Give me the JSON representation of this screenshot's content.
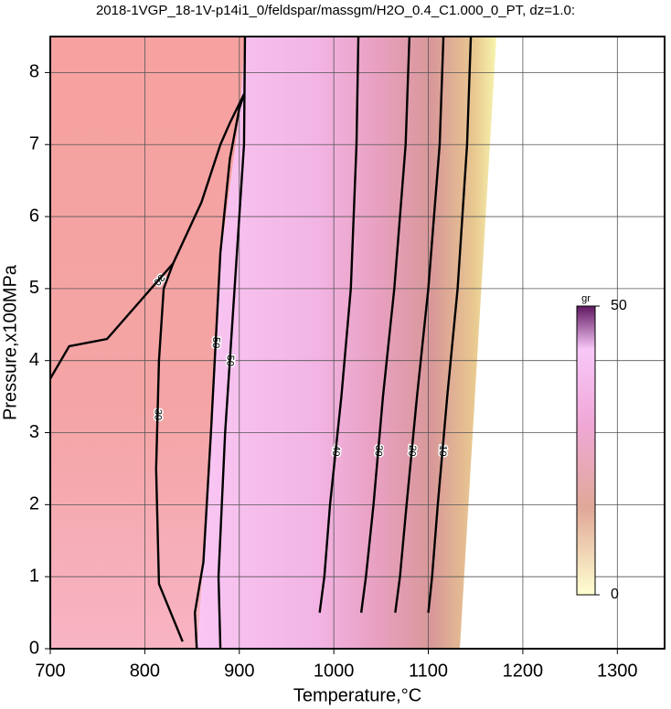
{
  "chart_data": {
    "type": "contour",
    "title": "2018-1VGP_18-1V-p14i1_0/feldspar/massgm/H2O_0.4_C1.000_0_PT, dz=1.0:",
    "x_label": "Temperature,°C",
    "y_label": "Pressure,x100MPa",
    "xlim": [
      700,
      1350
    ],
    "ylim": [
      0,
      8.5
    ],
    "xticks": [
      700,
      800,
      900,
      1000,
      1100,
      1200,
      1300
    ],
    "yticks": [
      0,
      1,
      2,
      3,
      4,
      5,
      6,
      7,
      8
    ],
    "grid": true,
    "colorbar": {
      "label": "gr",
      "lim": [
        0,
        50
      ],
      "ticks": [
        0,
        50
      ]
    },
    "series": [
      {
        "level": 30,
        "x": [
          700,
          720,
          760,
          800,
          830,
          860,
          880,
          890,
          905
        ],
        "y": [
          3.75,
          4.2,
          4.3,
          4.9,
          5.35,
          6.2,
          7.0,
          7.3,
          7.7
        ]
      },
      {
        "level": 30,
        "x": [
          840,
          815,
          812,
          815,
          820,
          830
        ],
        "y": [
          0.1,
          0.9,
          2.5,
          4.0,
          5.0,
          5.35
        ]
      },
      {
        "level": 50,
        "x": [
          855,
          853,
          862,
          870,
          880,
          890,
          900,
          905
        ],
        "y": [
          0,
          0.5,
          1.2,
          3,
          5.5,
          6.8,
          7.5,
          7.7
        ]
      },
      {
        "level": 50,
        "x": [
          880,
          878,
          885,
          895,
          905,
          906
        ],
        "y": [
          0,
          1,
          3,
          5,
          7,
          8.5
        ]
      },
      {
        "level": 40,
        "x": [
          985,
          990,
          996,
          1008,
          1018,
          1024,
          1026
        ],
        "y": [
          0.5,
          1,
          2,
          3.5,
          5,
          7,
          8.5
        ]
      },
      {
        "level": 30,
        "x": [
          1029,
          1034,
          1042,
          1052,
          1064,
          1076,
          1080
        ],
        "y": [
          0.5,
          1,
          2,
          3.5,
          5,
          7,
          8.5
        ]
      },
      {
        "level": 20,
        "x": [
          1065,
          1070,
          1077,
          1088,
          1100,
          1112,
          1116
        ],
        "y": [
          0.5,
          1,
          2,
          3.5,
          5,
          7,
          8.5
        ]
      },
      {
        "level": 10,
        "x": [
          1100,
          1104,
          1110,
          1120,
          1131,
          1141,
          1145
        ],
        "y": [
          0.5,
          1,
          2,
          3.5,
          5,
          7,
          8.5
        ]
      }
    ]
  }
}
